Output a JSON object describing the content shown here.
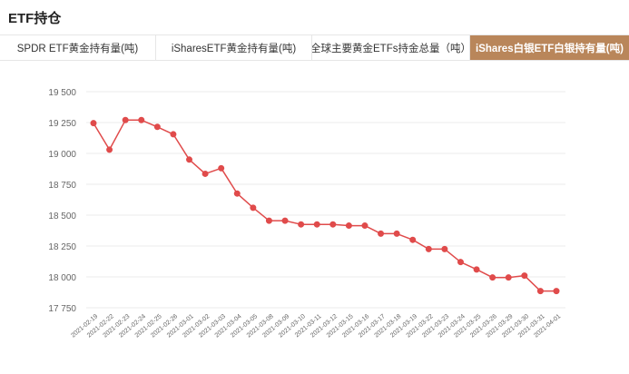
{
  "header": {
    "title": "ETF持仓"
  },
  "tabs": [
    {
      "label": "SPDR ETF黄金持有量(吨)",
      "active": false
    },
    {
      "label": "iSharesETF黄金持有量(吨)",
      "active": false
    },
    {
      "label": "全球主要黄金ETFs持金总量（吨）",
      "active": false
    },
    {
      "label": "iShares白银ETF白银持有量(吨)",
      "active": true
    }
  ],
  "colors": {
    "accent": "#b9865a",
    "line": "#e04b4b",
    "grid": "#ebebeb",
    "axis_text": "#666666"
  },
  "chart_data": {
    "type": "line",
    "title": "",
    "xlabel": "",
    "ylabel": "",
    "ylim": [
      17750,
      19500
    ],
    "yticks": [
      17750,
      18000,
      18250,
      18500,
      18750,
      19000,
      19250,
      19500
    ],
    "ytick_labels": [
      "17 750",
      "18 000",
      "18 250",
      "18 500",
      "18 750",
      "19 000",
      "19 250",
      "19 500"
    ],
    "grid": true,
    "legend": "none",
    "categories": [
      "2021-02-19",
      "2021-02-22",
      "2021-02-23",
      "2021-02-24",
      "2021-02-25",
      "2021-02-26",
      "2021-03-01",
      "2021-03-02",
      "2021-03-03",
      "2021-03-04",
      "2021-03-05",
      "2021-03-08",
      "2021-03-09",
      "2021-03-10",
      "2021-03-11",
      "2021-03-12",
      "2021-03-15",
      "2021-03-16",
      "2021-03-17",
      "2021-03-18",
      "2021-03-19",
      "2021-03-22",
      "2021-03-23",
      "2021-03-24",
      "2021-03-25",
      "2021-03-26",
      "2021-03-29",
      "2021-03-30",
      "2021-03-31",
      "2021-04-01"
    ],
    "series": [
      {
        "values": [
          19245,
          19030,
          19270,
          19270,
          19215,
          19155,
          18950,
          18835,
          18880,
          18675,
          18560,
          18455,
          18455,
          18425,
          18425,
          18425,
          18415,
          18415,
          18350,
          18350,
          18300,
          18225,
          18225,
          18120,
          18060,
          17995,
          17995,
          18010,
          17885,
          17885
        ]
      }
    ]
  }
}
